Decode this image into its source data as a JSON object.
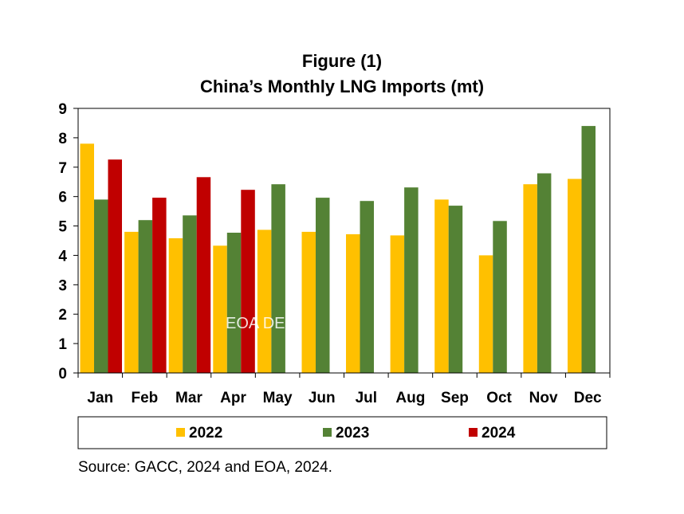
{
  "chart_data": {
    "type": "bar",
    "title": "Figure (1)",
    "subtitle": "China’s Monthly LNG Imports (mt)",
    "categories": [
      "Jan",
      "Feb",
      "Mar",
      "Apr",
      "May",
      "Jun",
      "Jul",
      "Aug",
      "Sep",
      "Oct",
      "Nov",
      "Dec"
    ],
    "series": [
      {
        "name": "2022",
        "color": "#FFC000",
        "values": [
          7.8,
          4.8,
          4.58,
          4.33,
          4.87,
          4.8,
          4.72,
          4.68,
          5.9,
          4.0,
          6.42,
          6.6
        ]
      },
      {
        "name": "2023",
        "color": "#548235",
        "values": [
          5.9,
          5.2,
          5.36,
          4.77,
          6.42,
          5.96,
          5.85,
          6.31,
          5.69,
          5.17,
          6.79,
          8.4
        ]
      },
      {
        "name": "2024",
        "color": "#C00000",
        "values": [
          7.26,
          5.96,
          6.66,
          6.23,
          null,
          null,
          null,
          null,
          null,
          null,
          null,
          null
        ]
      }
    ],
    "ylim": [
      0,
      9
    ],
    "yticks": [
      "0",
      "1",
      "2",
      "3",
      "4",
      "5",
      "6",
      "7",
      "8",
      "9"
    ],
    "grid": false,
    "legend": "bottom",
    "watermark": "EOA DER",
    "source": "Source: GACC, 2024 and EOA, 2024."
  }
}
